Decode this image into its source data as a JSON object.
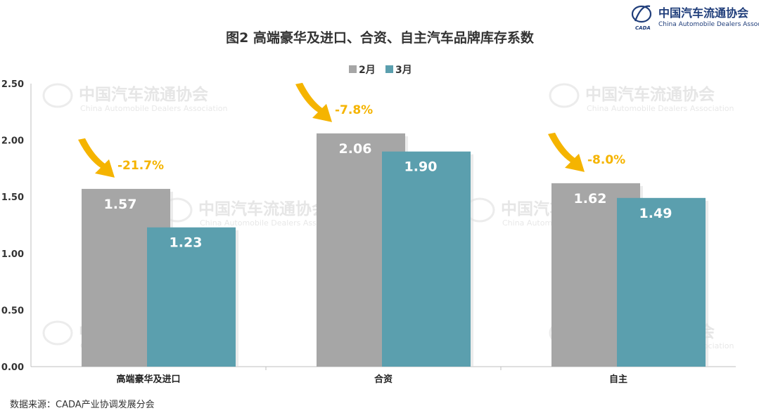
{
  "header": {
    "logo_cn": "中国汽车流通协会",
    "logo_en": "China Automobile Dealers Association",
    "logo_badge": "CADA"
  },
  "source_note": "数据来源：CADA产业协调发展分会",
  "colors": {
    "feb": "#a6a6a6",
    "mar": "#5b9fae",
    "arrow": "#f5b400",
    "change_text": "#f5b400",
    "axis": "#bfbfbf",
    "logo": "#1f3d7a"
  },
  "chart_data": {
    "type": "bar",
    "title": "图2  高端豪华及进口、合资、自主汽车品牌库存系数",
    "categories": [
      "高端豪华及进口",
      "合资",
      "自主"
    ],
    "series": [
      {
        "name": "2月",
        "values": [
          1.57,
          2.06,
          1.62
        ],
        "labels": [
          "1.57",
          "2.06",
          "1.62"
        ]
      },
      {
        "name": "3月",
        "values": [
          1.23,
          1.9,
          1.49
        ],
        "labels": [
          "1.23",
          "1.90",
          "1.49"
        ]
      }
    ],
    "changes": [
      "-21.7%",
      "-7.8%",
      "-8.0%"
    ],
    "ylim": [
      0,
      2.5
    ],
    "yticks": [
      "0.00",
      "0.50",
      "1.00",
      "1.50",
      "2.00",
      "2.50"
    ],
    "legend": "top-center",
    "grid": false
  }
}
